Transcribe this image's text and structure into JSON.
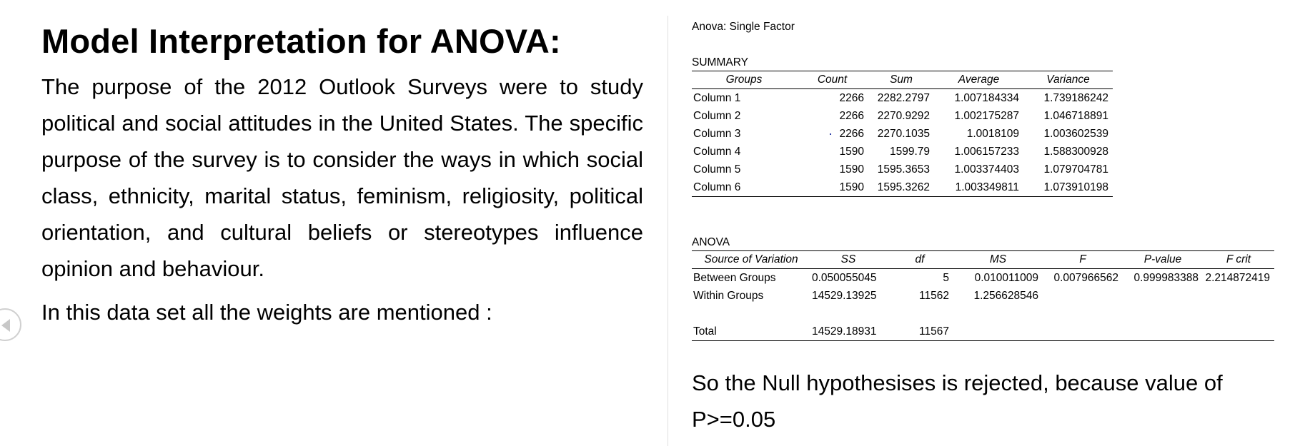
{
  "slide": {
    "title": "Model Interpretation for ANOVA:",
    "paragraph1": "The purpose of the 2012 Outlook Surveys were to study political and social attitudes in the United States. The specific purpose of the survey is to consider the ways in which social class, ethnicity, marital status, feminism, religiosity, political orientation, and cultural beliefs or stereotypes influence opinion and behaviour.",
    "paragraph2": "In this data set all the weights are mentioned :",
    "nav_icon": "chevron-left-icon"
  },
  "anova_output": {
    "heading": "Anova: Single Factor",
    "summary": {
      "label": "SUMMARY",
      "headers": [
        "Groups",
        "Count",
        "Sum",
        "Average",
        "Variance"
      ],
      "rows": [
        [
          "Column 1",
          "2266",
          "2282.2797",
          "1.007184334",
          "1.739186242"
        ],
        [
          "Column 2",
          "2266",
          "2270.9292",
          "1.002175287",
          "1.046718891"
        ],
        [
          "Column 3",
          "2266",
          "2270.1035",
          "1.0018109",
          "1.003602539"
        ],
        [
          "Column 4",
          "1590",
          "1599.79",
          "1.006157233",
          "1.588300928"
        ],
        [
          "Column 5",
          "1590",
          "1595.3653",
          "1.003374403",
          "1.079704781"
        ],
        [
          "Column 6",
          "1590",
          "1595.3262",
          "1.003349811",
          "1.073910198"
        ]
      ]
    },
    "anova": {
      "label": "ANOVA",
      "headers": [
        "Source of Variation",
        "SS",
        "df",
        "MS",
        "F",
        "P-value",
        "F crit"
      ],
      "rows": [
        [
          "Between Groups",
          "0.050055045",
          "5",
          "0.010011009",
          "0.007966562",
          "0.999983388",
          "2.214872419"
        ],
        [
          "Within Groups",
          "14529.13925",
          "11562",
          "1.256628546",
          "",
          "",
          ""
        ],
        [
          "",
          "",
          "",
          "",
          "",
          "",
          ""
        ],
        [
          "Total",
          "14529.18931",
          "11567",
          "",
          "",
          "",
          ""
        ]
      ]
    }
  },
  "conclusion": "So the Null hypothesises is rejected, because value of P>=0.05"
}
